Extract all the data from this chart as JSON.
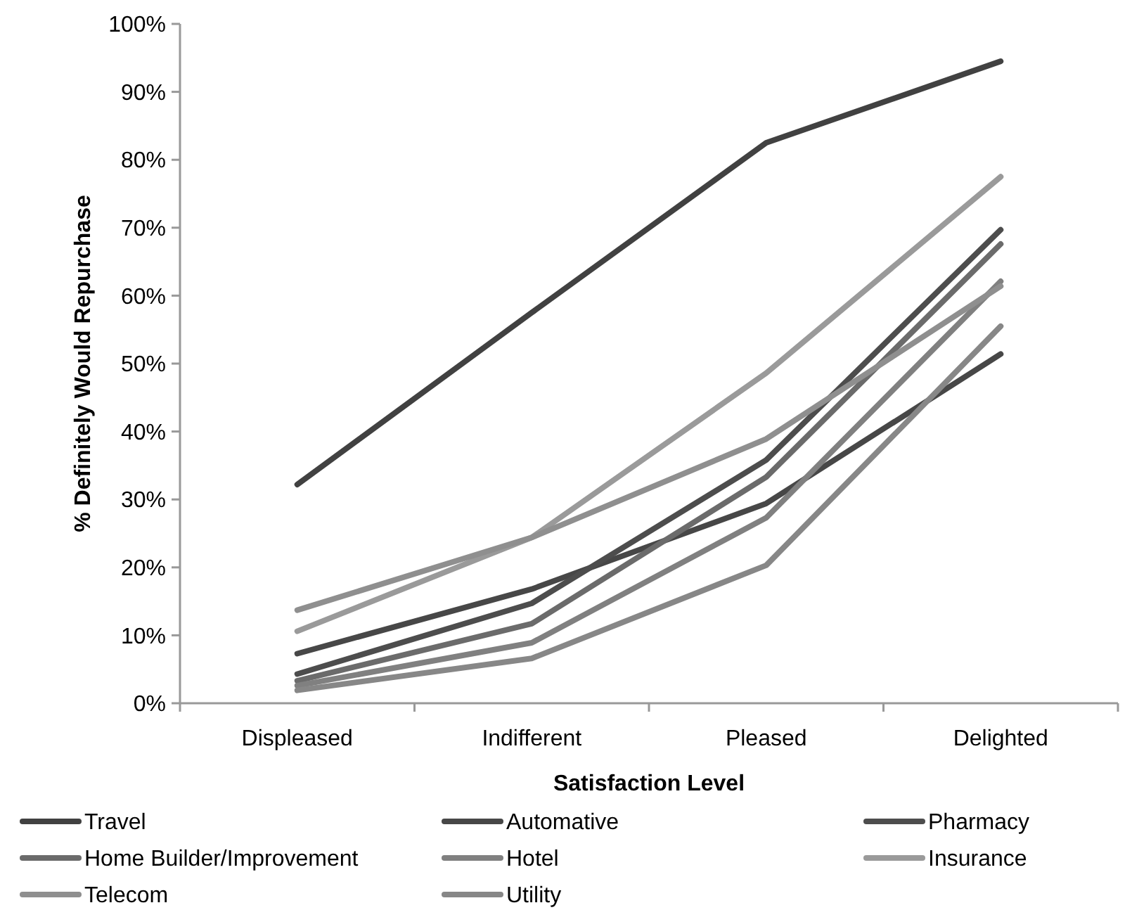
{
  "chart_data": {
    "type": "line",
    "xlabel": "Satisfaction Level",
    "ylabel": "% Definitely Would Repurchase",
    "categories": [
      "Displeased",
      "Indifferent",
      "Pleased",
      "Delighted"
    ],
    "ylim": [
      0,
      100
    ],
    "yticks": [
      {
        "value": 0,
        "label": "0%"
      },
      {
        "value": 10,
        "label": "10%"
      },
      {
        "value": 20,
        "label": "20%"
      },
      {
        "value": 30,
        "label": "30%"
      },
      {
        "value": 40,
        "label": "40%"
      },
      {
        "value": 50,
        "label": "50%"
      },
      {
        "value": 60,
        "label": "60%"
      },
      {
        "value": 70,
        "label": "70%"
      },
      {
        "value": 80,
        "label": "80%"
      },
      {
        "value": 90,
        "label": "90%"
      },
      {
        "value": 100,
        "label": "100%"
      }
    ],
    "grid": false,
    "legend": "bottom",
    "marker": "none",
    "line_style": "solid",
    "series": [
      {
        "name": "Travel",
        "color": "#414141",
        "values": [
          32.2,
          57.5,
          82.5,
          94.5
        ]
      },
      {
        "name": "Automative",
        "color": "#474747",
        "values": [
          7.3,
          16.8,
          29.4,
          51.4
        ]
      },
      {
        "name": "Pharmacy",
        "color": "#4d4d4d",
        "values": [
          4.3,
          14.7,
          35.8,
          69.7
        ]
      },
      {
        "name": "Home Builder/Improvement",
        "color": "#6b6b6b",
        "values": [
          3.3,
          11.7,
          33.3,
          67.6
        ]
      },
      {
        "name": "Hotel",
        "color": "#808080",
        "values": [
          2.6,
          8.9,
          27.3,
          62.1
        ]
      },
      {
        "name": "Insurance",
        "color": "#9a9a9a",
        "values": [
          10.6,
          24.4,
          48.6,
          77.5
        ]
      },
      {
        "name": "Telecom",
        "color": "#8f8f8f",
        "values": [
          13.7,
          24.4,
          38.9,
          61.4
        ]
      },
      {
        "name": "Utility",
        "color": "#878787",
        "values": [
          1.9,
          6.6,
          20.3,
          55.5
        ]
      }
    ]
  }
}
